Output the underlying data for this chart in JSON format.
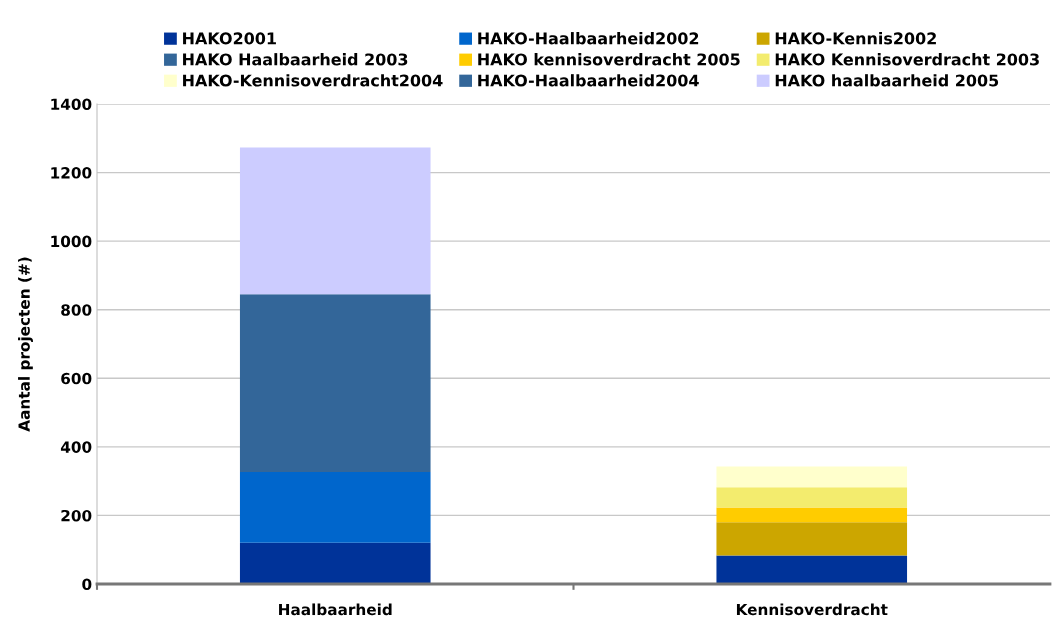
{
  "chart_data": {
    "type": "bar",
    "stacked": true,
    "ylabel": "Aantal projecten (#)",
    "categories": [
      "Haalbaarheid",
      "Kennisoverdracht"
    ],
    "series": [
      {
        "name": "HAKO2001",
        "color": "#003399",
        "values": [
          120,
          83
        ]
      },
      {
        "name": "HAKO-Haalbaarheid2002",
        "color": "#0066cc",
        "values": [
          207,
          null
        ]
      },
      {
        "name": "HAKO-Kennis2002",
        "color": "#cca600",
        "values": [
          null,
          97
        ]
      },
      {
        "name": "HAKO Haalbaarheid 2003",
        "color": "#336699",
        "values": [
          518,
          null
        ]
      },
      {
        "name": "HAKO kennisoverdracht 2005",
        "color": "#ffcc00",
        "values": [
          null,
          43
        ]
      },
      {
        "name": "HAKO Kennisoverdracht 2003",
        "color": "#f3ec6e",
        "values": [
          null,
          59
        ]
      },
      {
        "name": "HAKO-Kennisoverdracht2004",
        "color": "#ffffcc",
        "values": [
          null,
          61
        ]
      },
      {
        "name": "HAKO-Haalbaarheid2004",
        "color": "#336699",
        "values": [
          null,
          null
        ]
      },
      {
        "name": "HAKO haalbaarheid 2005",
        "color": "#ccccff",
        "values": [
          428,
          null
        ]
      }
    ],
    "ylim": [
      0,
      1400
    ],
    "yticks": [
      0,
      200,
      400,
      600,
      800,
      1000,
      1200,
      1400
    ],
    "grid": "y",
    "legend": "top"
  }
}
